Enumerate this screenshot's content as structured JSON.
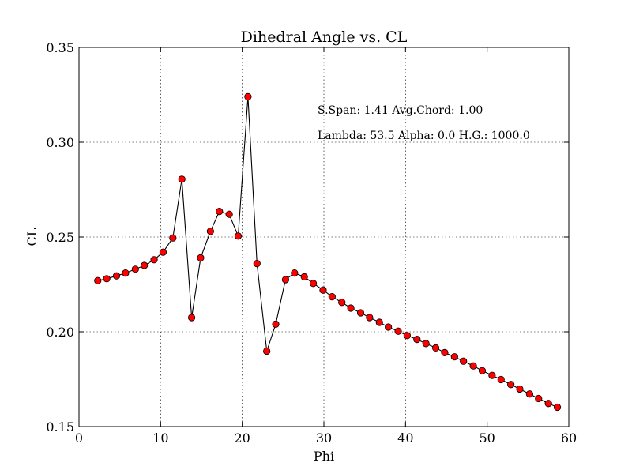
{
  "chart_data": {
    "type": "line",
    "title": "Dihedral Angle vs. CL",
    "xlabel": "Phi",
    "ylabel": "CL",
    "xlim": [
      0,
      60
    ],
    "ylim": [
      0.15,
      0.35
    ],
    "xticks": [
      0,
      10,
      20,
      30,
      40,
      50,
      60
    ],
    "yticks": [
      0.15,
      0.2,
      0.25,
      0.3,
      0.35
    ],
    "xtick_labels": [
      "0",
      "10",
      "20",
      "30",
      "40",
      "50",
      "60"
    ],
    "ytick_labels": [
      "0.15",
      "0.20",
      "0.25",
      "0.30",
      "0.35"
    ],
    "grid": true,
    "annotations": [
      "S.Span: 1.41 Avg.Chord: 1.00",
      "Lambda: 53.5 Alpha:  0.0 H.G.: 1000.0"
    ],
    "colors": {
      "line": "#000000",
      "marker": "#ff0000"
    },
    "series": [
      {
        "x": [
          2.3,
          3.4,
          4.6,
          5.7,
          6.9,
          8.0,
          9.2,
          10.3,
          11.5,
          12.6,
          13.8,
          14.9,
          16.1,
          17.2,
          18.4,
          19.5,
          20.7,
          21.8,
          23.0,
          24.1,
          25.3,
          26.4,
          27.6,
          28.7,
          29.9,
          31.0,
          32.2,
          33.3,
          34.5,
          35.6,
          36.8,
          37.9,
          39.1,
          40.2,
          41.4,
          42.5,
          43.7,
          44.8,
          46.0,
          47.1,
          48.3,
          49.4,
          50.6,
          51.7,
          52.9,
          54.0,
          55.2,
          56.3,
          57.5,
          58.6
        ],
        "y": [
          0.227,
          0.228,
          0.2295,
          0.231,
          0.233,
          0.235,
          0.238,
          0.242,
          0.2495,
          0.2805,
          0.2075,
          0.239,
          0.253,
          0.2635,
          0.262,
          0.2505,
          0.324,
          0.236,
          0.1898,
          0.204,
          0.2275,
          0.231,
          0.229,
          0.2255,
          0.222,
          0.2185,
          0.2155,
          0.2125,
          0.21,
          0.2075,
          0.205,
          0.2025,
          0.2003,
          0.198,
          0.196,
          0.1938,
          0.1915,
          0.189,
          0.1868,
          0.1845,
          0.182,
          0.1795,
          0.177,
          0.1748,
          0.1722,
          0.1698,
          0.1672,
          0.1648,
          0.1622,
          0.1602
        ]
      }
    ]
  }
}
